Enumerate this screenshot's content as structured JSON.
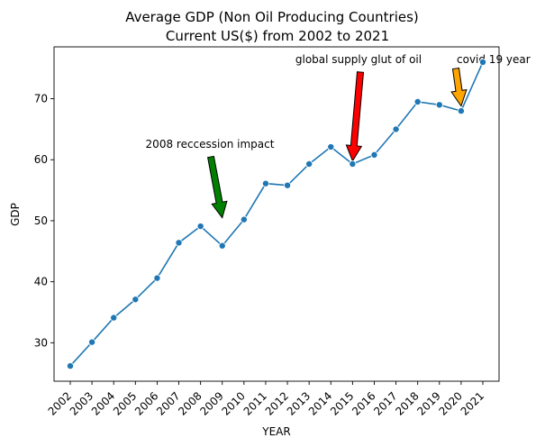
{
  "chart_data": {
    "type": "line",
    "title": "Average GDP (Non Oil Producing Countries)",
    "subtitle": "Current US($) from 2002 to 2021",
    "xlabel": "YEAR",
    "ylabel": "GDP",
    "x": [
      "2002",
      "2003",
      "2004",
      "2005",
      "2006",
      "2007",
      "2008",
      "2009",
      "2010",
      "2011",
      "2012",
      "2013",
      "2014",
      "2015",
      "2016",
      "2017",
      "2018",
      "2019",
      "2020",
      "2021"
    ],
    "series": [
      {
        "values": [
          26.2,
          30.1,
          34.1,
          37.1,
          40.6,
          46.4,
          49.1,
          45.9,
          50.2,
          56.1,
          55.8,
          59.3,
          62.1,
          59.3,
          60.8,
          65.0,
          69.5,
          69.0,
          68.0,
          76.0
        ],
        "color": "#1f77b4"
      }
    ],
    "ylim": [
      23.7,
      78.5
    ],
    "yticks": [
      30,
      40,
      50,
      60,
      70
    ],
    "grid": false,
    "annotations": [
      {
        "text": "2008 reccession impact",
        "x": "2009",
        "y": 50.5,
        "color": "#008000"
      },
      {
        "text": "global supply glut of oil",
        "x": "2015",
        "y": 59.8,
        "color": "#ff0000"
      },
      {
        "text": "covid 19 year",
        "x": "2020",
        "y": 68.8,
        "color": "#ffa500"
      }
    ]
  }
}
